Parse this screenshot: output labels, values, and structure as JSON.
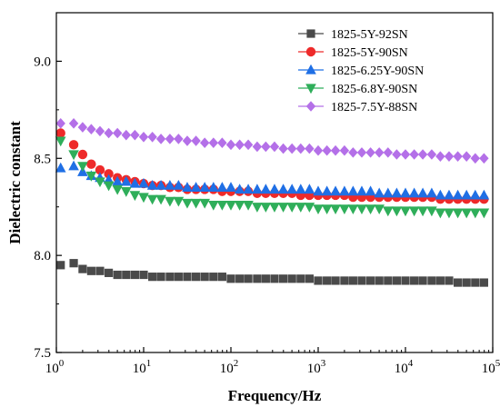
{
  "chart_data": {
    "type": "scatter",
    "title": "",
    "xlabel": "Frequency/Hz",
    "ylabel": "Dielectric constant",
    "xscale": "log",
    "xlim": [
      1,
      100000
    ],
    "ylim": [
      7.5,
      9.25
    ],
    "x_ticks": [
      {
        "value": 1,
        "base": "10",
        "exp": "0"
      },
      {
        "value": 10,
        "base": "10",
        "exp": "1"
      },
      {
        "value": 100,
        "base": "10",
        "exp": "2"
      },
      {
        "value": 1000,
        "base": "10",
        "exp": "3"
      },
      {
        "value": 10000,
        "base": "10",
        "exp": "4"
      },
      {
        "value": 100000,
        "base": "10",
        "exp": "5"
      }
    ],
    "y_ticks": [
      {
        "value": 7.5,
        "label": "7.5"
      },
      {
        "value": 8.0,
        "label": "8.0"
      },
      {
        "value": 8.5,
        "label": "8.5"
      },
      {
        "value": 9.0,
        "label": "9.0"
      }
    ],
    "grid": false,
    "legend_position": "top-right",
    "x": [
      1.12,
      1.58,
      2.0,
      2.51,
      3.16,
      3.98,
      5.01,
      6.31,
      7.94,
      10,
      12.6,
      15.8,
      20,
      25.1,
      31.6,
      39.8,
      50.1,
      63.1,
      79.4,
      100,
      126,
      158,
      200,
      251,
      316,
      398,
      501,
      631,
      794,
      1000,
      1260,
      1580,
      2000,
      2510,
      3160,
      3980,
      5010,
      6310,
      7940,
      10000,
      12600,
      15800,
      20000,
      25100,
      31600,
      39800,
      50100,
      63100,
      79400
    ],
    "series": [
      {
        "name": "1825-5Y-92SN",
        "color": "#4a4a4a",
        "marker": "square",
        "values": [
          7.95,
          7.96,
          7.93,
          7.92,
          7.92,
          7.91,
          7.9,
          7.9,
          7.9,
          7.9,
          7.89,
          7.89,
          7.89,
          7.89,
          7.89,
          7.89,
          7.89,
          7.89,
          7.89,
          7.88,
          7.88,
          7.88,
          7.88,
          7.88,
          7.88,
          7.88,
          7.88,
          7.88,
          7.88,
          7.87,
          7.87,
          7.87,
          7.87,
          7.87,
          7.87,
          7.87,
          7.87,
          7.87,
          7.87,
          7.87,
          7.87,
          7.87,
          7.87,
          7.87,
          7.87,
          7.86,
          7.86,
          7.86,
          7.86
        ]
      },
      {
        "name": "1825-5Y-90SN",
        "color": "#ee2a2a",
        "marker": "circle",
        "values": [
          8.63,
          8.57,
          8.52,
          8.47,
          8.44,
          8.42,
          8.4,
          8.39,
          8.38,
          8.37,
          8.36,
          8.36,
          8.35,
          8.35,
          8.34,
          8.34,
          8.34,
          8.34,
          8.33,
          8.33,
          8.33,
          8.33,
          8.32,
          8.32,
          8.32,
          8.32,
          8.32,
          8.31,
          8.31,
          8.31,
          8.31,
          8.31,
          8.31,
          8.3,
          8.3,
          8.3,
          8.3,
          8.3,
          8.3,
          8.3,
          8.3,
          8.3,
          8.3,
          8.29,
          8.29,
          8.29,
          8.29,
          8.29,
          8.29
        ]
      },
      {
        "name": "1825-6.25Y-90SN",
        "color": "#1f6fe5",
        "marker": "triangle-up",
        "values": [
          8.45,
          8.46,
          8.43,
          8.41,
          8.4,
          8.39,
          8.38,
          8.38,
          8.37,
          8.37,
          8.36,
          8.36,
          8.36,
          8.36,
          8.35,
          8.35,
          8.35,
          8.35,
          8.35,
          8.35,
          8.34,
          8.34,
          8.34,
          8.34,
          8.34,
          8.34,
          8.34,
          8.34,
          8.34,
          8.33,
          8.33,
          8.33,
          8.33,
          8.33,
          8.33,
          8.33,
          8.32,
          8.32,
          8.32,
          8.32,
          8.32,
          8.32,
          8.32,
          8.31,
          8.31,
          8.31,
          8.31,
          8.31,
          8.31
        ]
      },
      {
        "name": "1825-6.8Y-90SN",
        "color": "#2fae5a",
        "marker": "triangle-down",
        "values": [
          8.59,
          8.52,
          8.46,
          8.41,
          8.38,
          8.36,
          8.34,
          8.33,
          8.31,
          8.3,
          8.29,
          8.29,
          8.28,
          8.28,
          8.27,
          8.27,
          8.27,
          8.26,
          8.26,
          8.26,
          8.26,
          8.26,
          8.25,
          8.25,
          8.25,
          8.25,
          8.25,
          8.25,
          8.25,
          8.24,
          8.24,
          8.24,
          8.24,
          8.24,
          8.24,
          8.24,
          8.24,
          8.23,
          8.23,
          8.23,
          8.23,
          8.23,
          8.23,
          8.22,
          8.22,
          8.22,
          8.22,
          8.22,
          8.22
        ]
      },
      {
        "name": "1825-7.5Y-88SN",
        "color": "#b470e8",
        "marker": "diamond",
        "values": [
          8.68,
          8.68,
          8.66,
          8.65,
          8.64,
          8.63,
          8.63,
          8.62,
          8.62,
          8.61,
          8.61,
          8.6,
          8.6,
          8.6,
          8.59,
          8.59,
          8.58,
          8.58,
          8.58,
          8.57,
          8.57,
          8.57,
          8.56,
          8.56,
          8.56,
          8.55,
          8.55,
          8.55,
          8.55,
          8.54,
          8.54,
          8.54,
          8.54,
          8.53,
          8.53,
          8.53,
          8.53,
          8.53,
          8.52,
          8.52,
          8.52,
          8.52,
          8.52,
          8.51,
          8.51,
          8.51,
          8.51,
          8.5,
          8.5
        ]
      }
    ]
  }
}
